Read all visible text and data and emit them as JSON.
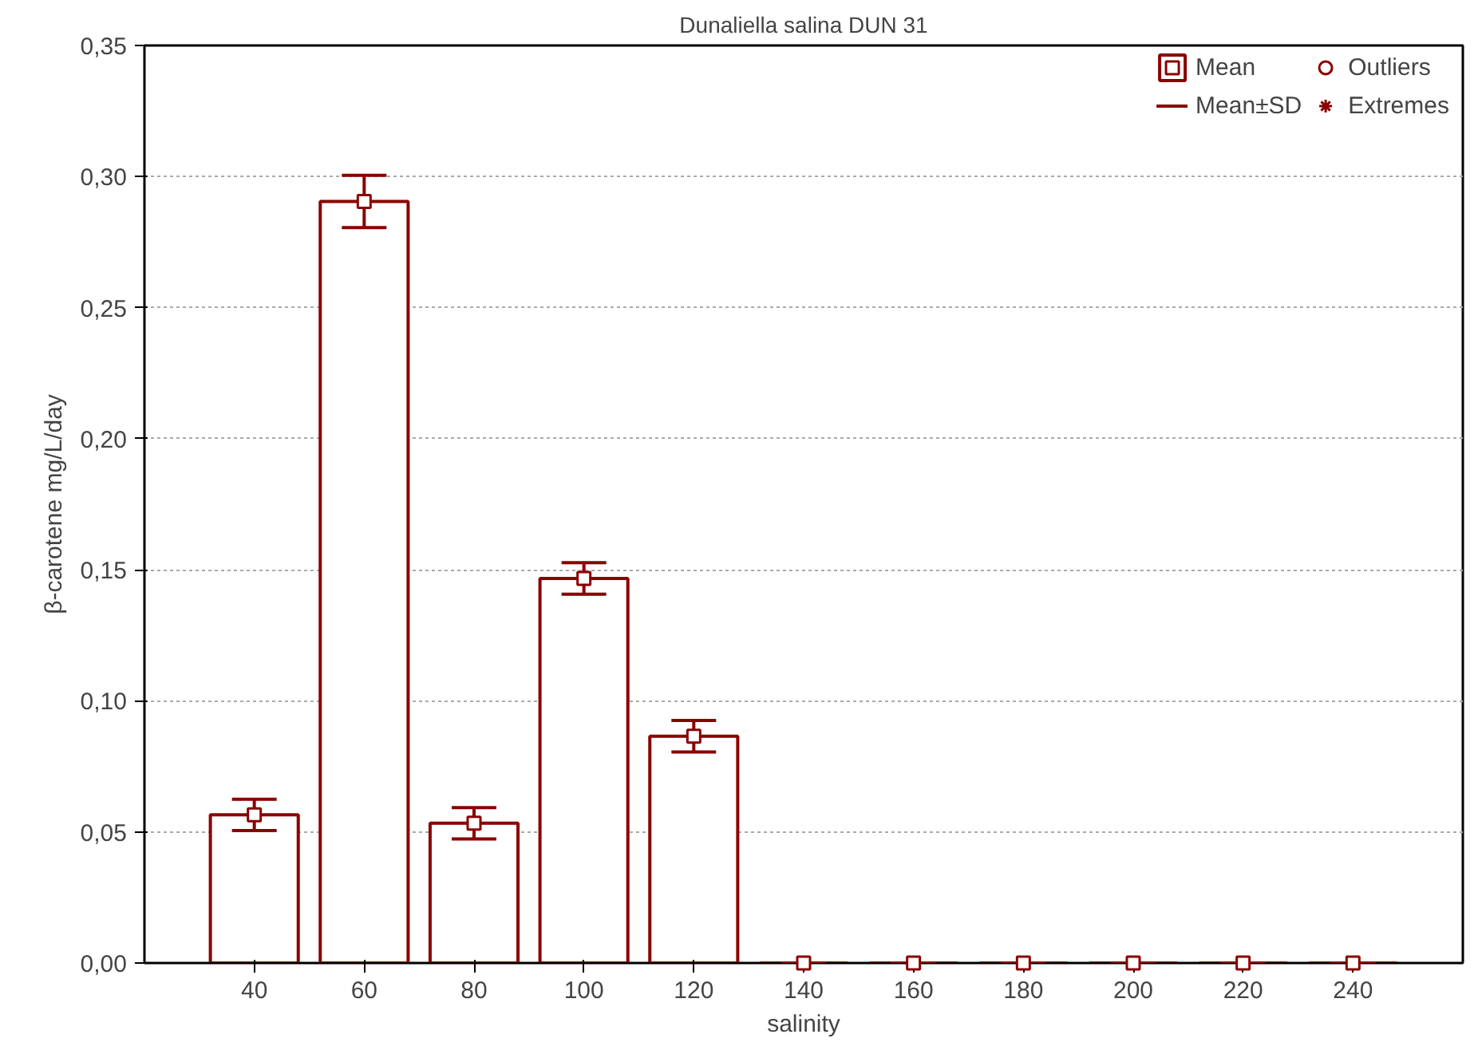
{
  "chart_data": {
    "type": "bar",
    "title": "Dunaliella salina DUN 31",
    "xlabel": "salinity",
    "ylabel": "β-carotene mg/L/day",
    "categories": [
      "40",
      "60",
      "80",
      "100",
      "120",
      "140",
      "160",
      "180",
      "200",
      "220",
      "240"
    ],
    "series": [
      {
        "name": "Mean",
        "type": "bar",
        "color": "#8b0000",
        "values": [
          0.0565,
          0.2905,
          0.0533,
          0.1467,
          0.0865,
          0,
          0,
          0,
          0,
          0,
          0
        ],
        "errors": [
          0.006,
          0.01,
          0.006,
          0.006,
          0.006,
          0,
          0,
          0,
          0,
          0,
          0
        ]
      },
      {
        "type": "scatter",
        "color": "#8b0000",
        "marker": "square",
        "x": [
          "40",
          "60",
          "80",
          "100",
          "120",
          "140",
          "160",
          "180",
          "200",
          "220",
          "240"
        ],
        "values": [
          0.0565,
          0.2905,
          0.0533,
          0.1467,
          0.0865,
          0,
          0,
          0,
          0,
          0,
          0
        ]
      },
      {
        "name": "Outliers",
        "type": "scatter",
        "color": "#8b0000",
        "marker": "circle",
        "values": [
          null,
          null,
          null,
          null,
          null,
          null,
          null,
          null,
          null,
          null,
          null
        ]
      },
      {
        "name": "Extremes",
        "type": "scatter",
        "color": "#8b0000",
        "marker": "star",
        "values": [
          null,
          null,
          null,
          null,
          null,
          null,
          null,
          null,
          null,
          null,
          null
        ]
      }
    ],
    "annotations": [
      "Mean±SD"
    ],
    "ylim": [
      0,
      0.35
    ],
    "yticks": [
      {
        "value": 0,
        "label": "0,00"
      },
      {
        "value": 0.05,
        "label": "0,05"
      },
      {
        "value": 0.1,
        "label": "0,10"
      },
      {
        "value": 0.15,
        "label": "0,15"
      },
      {
        "value": 0.2,
        "label": "0,20"
      },
      {
        "value": 0.25,
        "label": "0,25"
      },
      {
        "value": 0.3,
        "label": "0,30"
      },
      {
        "value": 0.35,
        "label": "0,35"
      }
    ],
    "grid": "y",
    "legend": "top right"
  }
}
